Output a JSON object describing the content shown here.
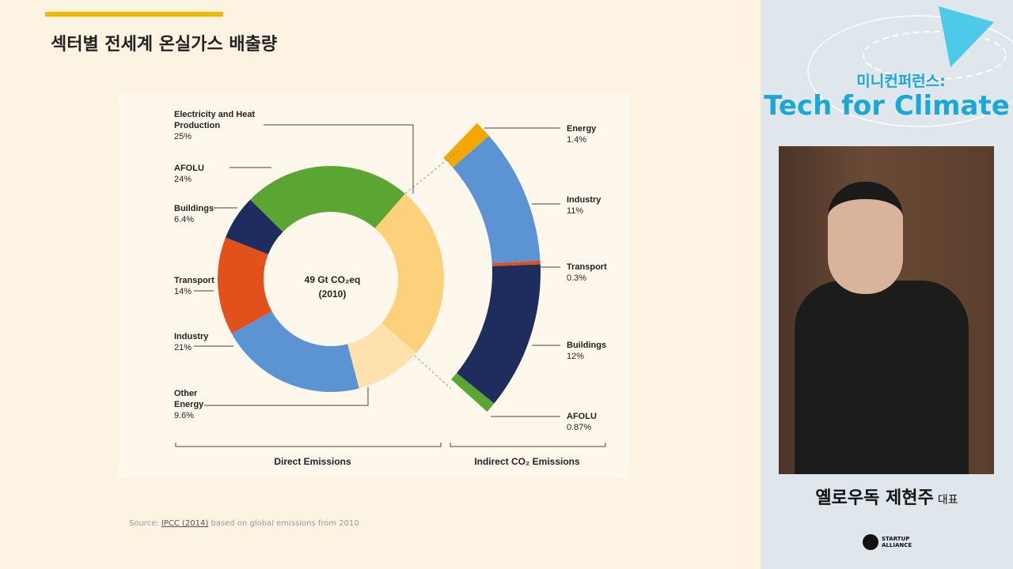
{
  "slide": {
    "title": "섹터별 전세계 온실가스 배출량",
    "source": {
      "prefix": "Source:",
      "link": "IPCC (2014)",
      "suffix": "based on global emissions from 2010"
    }
  },
  "chart_data": {
    "type": "donut",
    "center_label": [
      "49 Gt CO₂eq",
      "(2010)"
    ],
    "series": [
      {
        "name": "Direct Emissions",
        "categories": [
          "Electricity and Heat Production",
          "Other Energy",
          "Industry",
          "Transport",
          "Buildings",
          "AFOLU"
        ],
        "values": [
          25,
          9.6,
          21,
          14,
          6.4,
          24
        ],
        "value_labels": [
          "25%",
          "9.6%",
          "21%",
          "14%",
          "6.4%",
          "24%"
        ],
        "colors": [
          "#fdd07c",
          "#fde2ad",
          "#5b93d3",
          "#e2511c",
          "#1f2c5e",
          "#5ba632"
        ]
      },
      {
        "name": "Indirect CO₂ Emissions",
        "categories": [
          "Energy",
          "Industry",
          "Transport",
          "Buildings",
          "AFOLU"
        ],
        "values": [
          1.4,
          11,
          0.3,
          12,
          0.87
        ],
        "value_labels": [
          "1.4%",
          "11%",
          "0.3%",
          "12%",
          "0.87%"
        ],
        "colors": [
          "#f5a600",
          "#5b93d3",
          "#e2511c",
          "#1f2c5e",
          "#5ba632"
        ]
      }
    ]
  },
  "sidebar": {
    "event": "미니컨퍼런스:",
    "title": "Tech for Climate",
    "speaker": "옐로우독 제현주",
    "role": "대표",
    "logo": [
      "STARTUP",
      "ALLIANCE"
    ]
  }
}
